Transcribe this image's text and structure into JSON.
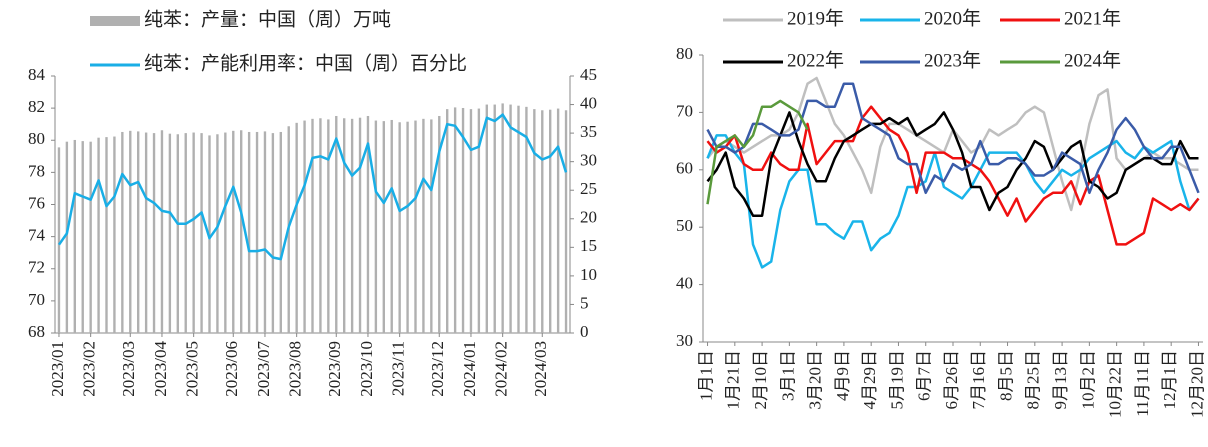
{
  "chart_data": [
    {
      "type": "combo",
      "categories": [
        "2023/01",
        null,
        null,
        null,
        "2023/02",
        null,
        null,
        null,
        null,
        "2023/03",
        null,
        null,
        null,
        "2023/04",
        null,
        null,
        null,
        "2023/05",
        null,
        null,
        null,
        null,
        "2023/06",
        null,
        null,
        null,
        "2023/07",
        null,
        null,
        null,
        "2023/08",
        null,
        null,
        null,
        null,
        "2023/09",
        null,
        null,
        null,
        "2023/10",
        null,
        null,
        null,
        "2023/11",
        null,
        null,
        null,
        null,
        "2023/12",
        null,
        null,
        null,
        "2024/01",
        null,
        null,
        null,
        "2024/02",
        null,
        null,
        null,
        null,
        "2024/03",
        null,
        null,
        null
      ],
      "ylim": [
        68,
        84
      ],
      "yticks": [
        68,
        70,
        72,
        74,
        76,
        78,
        80,
        82,
        84
      ],
      "y2lim": [
        0,
        45
      ],
      "y2ticks": [
        0,
        5,
        10,
        15,
        20,
        25,
        30,
        35,
        40,
        45
      ],
      "series": [
        {
          "name": "纯苯：产量：中国（周）万吨",
          "kind": "bar",
          "axis": "y2",
          "color": "#b0b0b0",
          "values": [
            32.5,
            33.5,
            33.8,
            33.6,
            33.5,
            34.2,
            34.3,
            34.4,
            35.2,
            35.4,
            35.3,
            35.1,
            35.0,
            35.5,
            34.9,
            34.8,
            35.0,
            35.1,
            35.0,
            34.6,
            34.8,
            35.1,
            35.4,
            35.5,
            35.2,
            35.2,
            35.3,
            35.0,
            35.2,
            36.2,
            36.8,
            37.2,
            37.5,
            37.6,
            37.4,
            38.0,
            37.6,
            37.5,
            37.7,
            38.0,
            37.2,
            37.1,
            37.3,
            36.9,
            37.0,
            37.2,
            37.5,
            37.4,
            38.0,
            39.2,
            39.5,
            39.4,
            39.2,
            39.3,
            40.0,
            40.0,
            40.2,
            40.0,
            39.8,
            39.6,
            39.2,
            39.0,
            39.1,
            39.3,
            39.0
          ]
        },
        {
          "name": "纯苯：产能利用率：中国（周）百分比",
          "kind": "line",
          "color": "#19aee6",
          "values": [
            73.5,
            74.2,
            76.7,
            76.5,
            76.3,
            77.5,
            75.9,
            76.5,
            77.9,
            77.2,
            77.4,
            76.4,
            76.1,
            75.6,
            75.5,
            74.8,
            74.8,
            75.1,
            75.5,
            73.9,
            74.6,
            75.9,
            77.1,
            75.5,
            73.1,
            73.1,
            73.2,
            72.7,
            72.6,
            74.6,
            76.0,
            77.2,
            78.9,
            79.0,
            78.8,
            80.1,
            78.6,
            77.8,
            78.3,
            79.8,
            76.8,
            76.1,
            77.0,
            75.6,
            75.9,
            76.4,
            77.6,
            76.9,
            79.3,
            81.0,
            80.9,
            80.2,
            79.4,
            79.6,
            81.4,
            81.2,
            81.6,
            80.8,
            80.5,
            80.2,
            79.2,
            78.8,
            79.0,
            79.6,
            78.0
          ]
        }
      ]
    },
    {
      "type": "line",
      "categories": [
        "1月1日",
        null,
        null,
        "1月21日",
        null,
        null,
        "2月10日",
        null,
        null,
        "3月1日",
        null,
        null,
        "3月20日",
        null,
        null,
        "4月9日",
        null,
        null,
        "4月29日",
        null,
        null,
        "5月19日",
        null,
        null,
        "6月7日",
        null,
        null,
        "6月26日",
        null,
        null,
        "7月16日",
        null,
        null,
        "8月5日",
        null,
        null,
        "8月25日",
        null,
        null,
        "9月13日",
        null,
        null,
        "10月2日",
        null,
        null,
        "10月22日",
        null,
        null,
        "11月11日",
        null,
        null,
        "12月1日",
        null,
        null,
        "12月20日"
      ],
      "ylim": [
        30,
        80
      ],
      "yticks": [
        30,
        40,
        50,
        60,
        70,
        80
      ],
      "series": [
        {
          "name": "2019年",
          "color": "#bfbfbf",
          "values": [
            62,
            64,
            65,
            64,
            63,
            64,
            65,
            66,
            66,
            67,
            70,
            75,
            76,
            72,
            68,
            66,
            63,
            60,
            56,
            64,
            68,
            68,
            67,
            66,
            65,
            64,
            63,
            67,
            65,
            63,
            64,
            67,
            66,
            67,
            68,
            70,
            71,
            70,
            64,
            58,
            53,
            60,
            68,
            73,
            74,
            62,
            60,
            61,
            62,
            63,
            62,
            62,
            61,
            60,
            60
          ]
        },
        {
          "name": "2020年",
          "color": "#19b4ea",
          "values": [
            62,
            66,
            66,
            63,
            61,
            47,
            43,
            44,
            53,
            58,
            60,
            60,
            50.5,
            50.5,
            49,
            48,
            51,
            51,
            46,
            48,
            49,
            52,
            57,
            57,
            58,
            63,
            57,
            56,
            55,
            57,
            60,
            63,
            63,
            63,
            63,
            61,
            58,
            56,
            58,
            60,
            59,
            60,
            62,
            63,
            64,
            65,
            63,
            62,
            64,
            63,
            64,
            65,
            58,
            53,
            55
          ]
        },
        {
          "name": "2021年",
          "color": "#f01010",
          "values": [
            65,
            63,
            64,
            66,
            61,
            60,
            60,
            63,
            61,
            60,
            60,
            68,
            61,
            63,
            65,
            65,
            65,
            69,
            71,
            69,
            67,
            66,
            63,
            56,
            63,
            63,
            63,
            62,
            62,
            61,
            60,
            58,
            55,
            52,
            55,
            51,
            53,
            55,
            56,
            56,
            58,
            54,
            58,
            59,
            53,
            47,
            47,
            48,
            49,
            55,
            54,
            53,
            54,
            53,
            55
          ]
        },
        {
          "name": "2022年",
          "color": "#000000",
          "values": [
            58,
            60,
            63,
            57,
            55,
            52,
            52,
            62,
            66,
            70,
            65,
            61,
            58,
            58,
            62,
            65,
            66,
            67,
            68,
            68,
            69,
            68,
            69,
            66,
            67,
            68,
            70,
            67,
            63,
            57,
            57,
            53,
            56,
            57,
            60,
            62,
            65,
            64,
            60,
            62,
            64,
            65,
            58,
            57,
            55,
            56,
            60,
            61,
            62,
            62,
            61,
            61,
            65,
            62,
            62
          ]
        },
        {
          "name": "2023年",
          "color": "#3a5ba8",
          "values": [
            67,
            64,
            64,
            63,
            64,
            68,
            68,
            67,
            66,
            66,
            67,
            72,
            72,
            71,
            71,
            75,
            75,
            69,
            68,
            67,
            66,
            62,
            61,
            61,
            56,
            59,
            58,
            61,
            60,
            61,
            65,
            61,
            61,
            62,
            62,
            61,
            59,
            59,
            60,
            63,
            62,
            61,
            56,
            60,
            63,
            67,
            69,
            67,
            64,
            62,
            62,
            64,
            64,
            60,
            56
          ]
        },
        {
          "name": "2024年",
          "color": "#5a9a3c",
          "values": [
            54,
            64,
            65,
            66,
            64,
            66,
            71,
            71,
            72,
            71,
            70,
            67,
            null,
            null,
            null,
            null,
            null,
            null,
            null,
            null,
            null,
            null,
            null,
            null,
            null,
            null,
            null,
            null,
            null,
            null,
            null,
            null,
            null,
            null,
            null,
            null,
            null,
            null,
            null,
            null,
            null,
            null,
            null,
            null,
            null,
            null,
            null,
            null,
            null,
            null,
            null,
            null,
            null,
            null,
            null
          ]
        }
      ]
    }
  ]
}
